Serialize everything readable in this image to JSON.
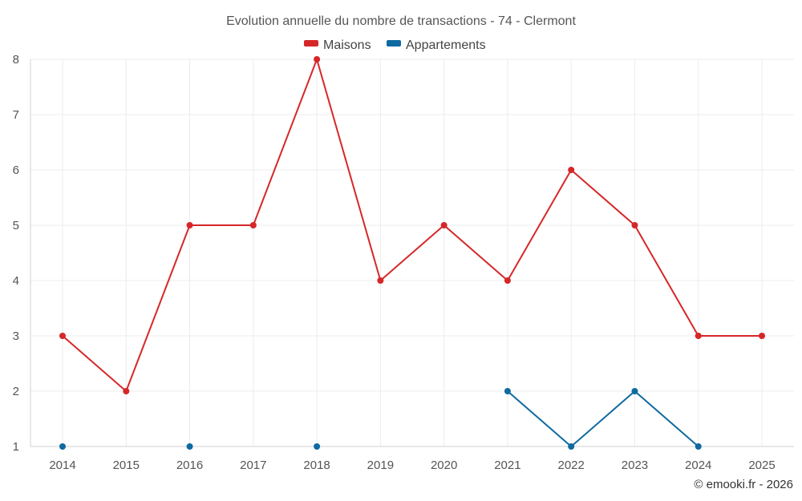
{
  "chart_data": {
    "type": "line",
    "title": "Evolution annuelle du nombre de transactions - 74 - Clermont",
    "categories": [
      "2014",
      "2015",
      "2016",
      "2017",
      "2018",
      "2019",
      "2020",
      "2021",
      "2022",
      "2023",
      "2024",
      "2025"
    ],
    "series": [
      {
        "name": "Maisons",
        "color": "#d62728",
        "values": [
          3,
          2,
          5,
          5,
          8,
          4,
          5,
          4,
          6,
          5,
          3,
          3
        ]
      },
      {
        "name": "Appartements",
        "color": "#0f6aa0",
        "values": [
          1,
          null,
          1,
          null,
          1,
          null,
          null,
          2,
          1,
          2,
          1,
          null
        ]
      }
    ],
    "xlabel": "",
    "ylabel": "",
    "ylim": [
      1,
      8
    ],
    "yticks": [
      1,
      2,
      3,
      4,
      5,
      6,
      7,
      8
    ],
    "grid": true,
    "legend_position": "top-center"
  },
  "credit": "© emooki.fr - 2026"
}
